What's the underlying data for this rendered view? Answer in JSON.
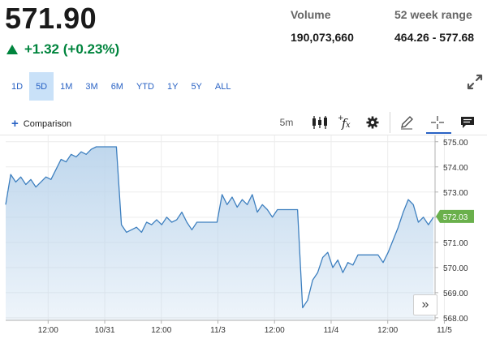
{
  "quote": {
    "price": "571.90",
    "change": "+1.32 (+0.23%)",
    "volume_label": "Volume",
    "volume": "190,073,660",
    "range_label": "52 week range",
    "range": "464.26 - 577.68",
    "up_color": "#00843d"
  },
  "ranges": [
    "1D",
    "5D",
    "1M",
    "3M",
    "6M",
    "YTD",
    "1Y",
    "5Y",
    "ALL"
  ],
  "active_range": "5D",
  "toolbar": {
    "comparison_label": "Comparison",
    "interval": "5m",
    "icons": [
      "candlestick-icon",
      "function-icon",
      "gear-icon",
      "pencil-icon",
      "crosshair-icon",
      "comment-icon"
    ]
  },
  "chart_data": {
    "type": "area",
    "x_labels": [
      "12:00",
      "10/31",
      "12:00",
      "11/3",
      "12:00",
      "11/4",
      "12:00",
      "11/5"
    ],
    "y_ticks": [
      "575.00",
      "574.00",
      "573.00",
      "572.00",
      "571.00",
      "570.00",
      "569.00",
      "568.00"
    ],
    "ylim": [
      567.9,
      575.25
    ],
    "last_label": "572.03",
    "line_color": "#3d7fbf",
    "fill_color": "#bcd5ec",
    "grid": true,
    "series": [
      {
        "values": [
          572.5,
          573.7,
          573.4,
          573.6,
          573.3,
          573.5,
          573.2,
          573.4,
          573.6,
          573.5,
          573.9,
          574.3,
          574.2,
          574.5,
          574.4,
          574.6,
          574.5,
          574.7,
          574.8,
          574.8,
          574.8,
          574.8,
          574.8,
          571.7,
          571.4,
          571.5,
          571.6,
          571.4,
          571.8,
          571.7,
          571.9,
          571.7,
          572.0,
          571.8,
          571.9,
          572.2,
          571.8,
          571.5,
          571.8,
          571.8,
          571.8,
          571.8,
          571.8,
          572.9,
          572.5,
          572.8,
          572.4,
          572.7,
          572.5,
          572.9,
          572.2,
          572.5,
          572.3,
          572.0,
          572.3,
          572.3,
          572.3,
          572.3,
          572.3,
          568.4,
          568.7,
          569.5,
          569.8,
          570.4,
          570.6,
          570.0,
          570.3,
          569.8,
          570.2,
          570.1,
          570.5,
          570.5,
          570.5,
          570.5,
          570.5,
          570.2,
          570.6,
          571.1,
          571.6,
          572.2,
          572.7,
          572.5,
          571.8,
          572.0,
          571.7,
          572.0
        ]
      }
    ]
  }
}
